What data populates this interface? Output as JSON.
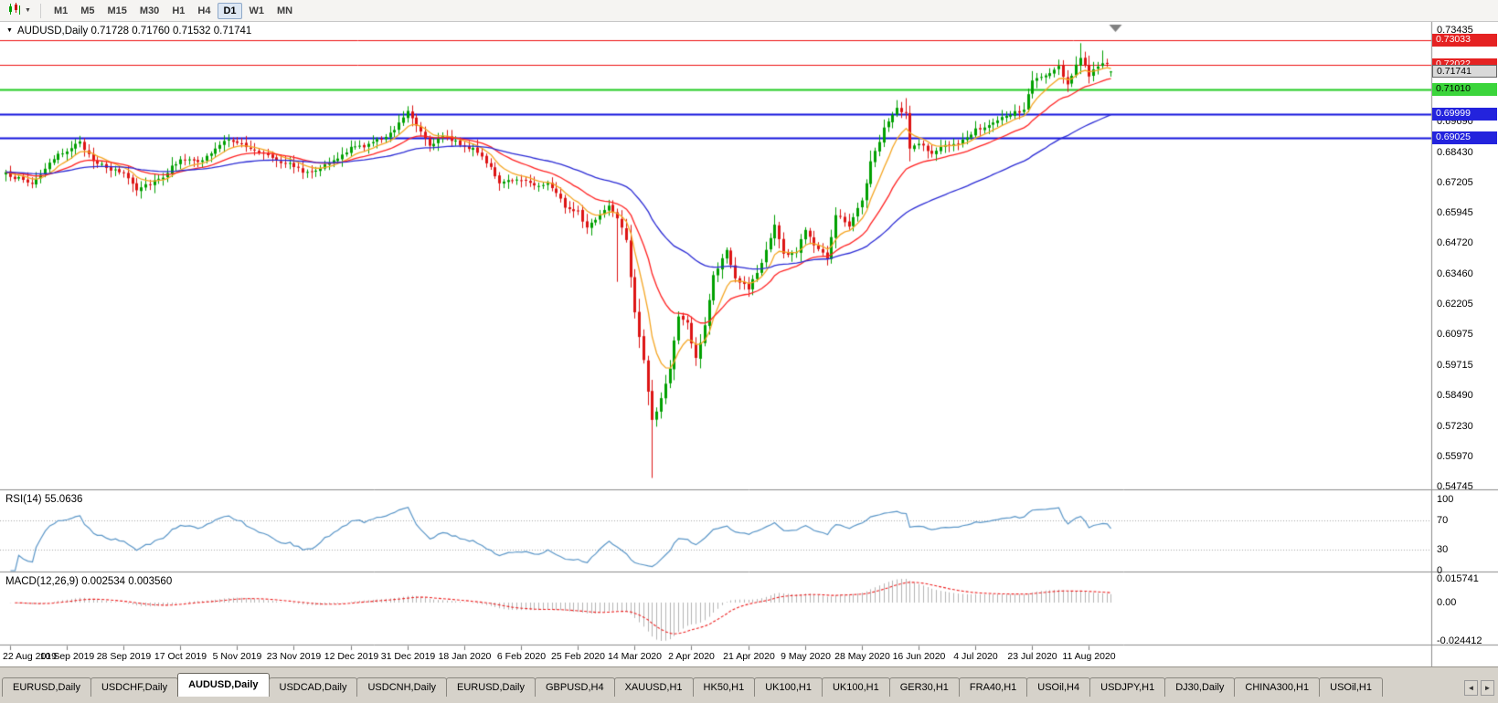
{
  "icons": {
    "collapse_triangle": "▼",
    "dropdown_caret": "▼",
    "tab_scroll_left": "◄",
    "tab_scroll_right": "►"
  },
  "colors": {
    "up": "#00a000",
    "down": "#dd1414",
    "ma_fast": "#f5a623",
    "ma_mid": "#ff2222",
    "ma_slow": "#2b2bd5",
    "hline_red": "#ee1111",
    "hline_green": "#1ecb1e",
    "hline_blue": "#1414dd",
    "rsi_line": "#5a96c8",
    "macd_hist": "#b4b4b4",
    "macd_signal": "#ee2222"
  },
  "toolbar": {
    "timeframes": [
      "M1",
      "M5",
      "M15",
      "M30",
      "H1",
      "H4",
      "D1",
      "W1",
      "MN"
    ],
    "active": "D1"
  },
  "price_pane": {
    "header_text": "AUDUSD,Daily 0.71728 0.71760 0.71532 0.71741",
    "axis_plain_labels": [
      0.73435,
      0.6969,
      0.6843,
      0.67205,
      0.65945,
      0.6472,
      0.6346,
      0.62205,
      0.60975,
      0.59715,
      0.5849,
      0.5723,
      0.5597,
      0.54745
    ],
    "axis_tags": [
      {
        "value": 0.73033,
        "style": "red"
      },
      {
        "value": 0.72022,
        "style": "red"
      },
      {
        "value": 0.71741,
        "style": "current"
      },
      {
        "value": 0.7101,
        "style": "green"
      },
      {
        "value": 0.69999,
        "style": "blue"
      },
      {
        "value": 0.69025,
        "style": "blue"
      }
    ]
  },
  "rsi_pane": {
    "label_text": "RSI(14) 55.0636",
    "axis_labels": [
      100,
      70,
      30,
      0
    ],
    "dotted_levels": [
      70,
      30
    ]
  },
  "macd_pane": {
    "label_text": "MACD(12,26,9) 0.002534 0.003560",
    "axis_labels": [
      "0.015741",
      "0.00",
      "-0.024412"
    ]
  },
  "tabs": {
    "items": [
      "EURUSD,Daily",
      "USDCHF,Daily",
      "AUDUSD,Daily",
      "USDCAD,Daily",
      "USDCNH,Daily",
      "EURUSD,Daily",
      "GBPUSD,H4",
      "XAUUSD,H1",
      "HK50,H1",
      "UK100,H1",
      "UK100,H1",
      "GER30,H1",
      "FRA40,H1",
      "USOil,H4",
      "USDJPY,H1",
      "DJ30,Daily",
      "CHINA300,H1",
      "USOil,H1"
    ],
    "active_index": 2
  },
  "chart_data": {
    "type": "candlestick",
    "symbol": "AUDUSD",
    "timeframe": "Daily",
    "ohlc_current": {
      "open": 0.71728,
      "high": 0.7176,
      "low": 0.71532,
      "close": 0.71741
    },
    "ylim": [
      0.54745,
      0.73435
    ],
    "bar_count": 254,
    "label_first_bar": 1,
    "label_bar_step": 13,
    "x_labels": [
      "22 Aug 2019",
      "10 Sep 2019",
      "28 Sep 2019",
      "17 Oct 2019",
      "5 Nov 2019",
      "23 Nov 2019",
      "12 Dec 2019",
      "31 Dec 2019",
      "18 Jan 2020",
      "6 Feb 2020",
      "25 Feb 2020",
      "14 Mar 2020",
      "2 Apr 2020",
      "21 Apr 2020",
      "9 May 2020",
      "28 May 2020",
      "16 Jun 2020",
      "4 Jul 2020",
      "23 Jul 2020",
      "11 Aug 2020"
    ],
    "close_anchors": [
      [
        0,
        0.6755
      ],
      [
        3,
        0.6735
      ],
      [
        6,
        0.6715
      ],
      [
        9,
        0.6775
      ],
      [
        12,
        0.683
      ],
      [
        15,
        0.6865
      ],
      [
        17,
        0.688
      ],
      [
        20,
        0.6815
      ],
      [
        23,
        0.6775
      ],
      [
        27,
        0.676
      ],
      [
        30,
        0.6695
      ],
      [
        33,
        0.672
      ],
      [
        36,
        0.6745
      ],
      [
        40,
        0.682
      ],
      [
        44,
        0.68
      ],
      [
        47,
        0.684
      ],
      [
        51,
        0.69
      ],
      [
        53,
        0.6885
      ],
      [
        56,
        0.6855
      ],
      [
        60,
        0.6835
      ],
      [
        63,
        0.6805
      ],
      [
        66,
        0.679
      ],
      [
        68,
        0.676
      ],
      [
        71,
        0.6775
      ],
      [
        75,
        0.6805
      ],
      [
        79,
        0.686
      ],
      [
        83,
        0.6875
      ],
      [
        86,
        0.69
      ],
      [
        89,
        0.694
      ],
      [
        92,
        0.7015
      ],
      [
        94,
        0.696
      ],
      [
        97,
        0.6875
      ],
      [
        100,
        0.6905
      ],
      [
        103,
        0.689
      ],
      [
        105,
        0.687
      ],
      [
        108,
        0.6845
      ],
      [
        111,
        0.6785
      ],
      [
        113,
        0.6715
      ],
      [
        116,
        0.6725
      ],
      [
        118,
        0.6735
      ],
      [
        121,
        0.671
      ],
      [
        124,
        0.6715
      ],
      [
        126,
        0.668
      ],
      [
        128,
        0.662
      ],
      [
        131,
        0.6605
      ],
      [
        133,
        0.653
      ],
      [
        136,
        0.659
      ],
      [
        138,
        0.6625
      ],
      [
        140,
        0.658
      ],
      [
        142,
        0.649
      ],
      [
        144,
        0.619
      ],
      [
        146,
        0.5995
      ],
      [
        148,
        0.574
      ],
      [
        150,
        0.583
      ],
      [
        152,
        0.5965
      ],
      [
        154,
        0.617
      ],
      [
        156,
        0.614
      ],
      [
        158,
        0.5995
      ],
      [
        160,
        0.6135
      ],
      [
        162,
        0.634
      ],
      [
        165,
        0.644
      ],
      [
        167,
        0.6325
      ],
      [
        170,
        0.6285
      ],
      [
        173,
        0.639
      ],
      [
        176,
        0.655
      ],
      [
        178,
        0.6425
      ],
      [
        181,
        0.6435
      ],
      [
        183,
        0.653
      ],
      [
        185,
        0.647
      ],
      [
        188,
        0.6415
      ],
      [
        190,
        0.659
      ],
      [
        193,
        0.6545
      ],
      [
        196,
        0.6645
      ],
      [
        198,
        0.68
      ],
      [
        201,
        0.694
      ],
      [
        204,
        0.702
      ],
      [
        206,
        0.7
      ],
      [
        207,
        0.6855
      ],
      [
        209,
        0.6885
      ],
      [
        212,
        0.6835
      ],
      [
        215,
        0.6875
      ],
      [
        218,
        0.687
      ],
      [
        222,
        0.694
      ],
      [
        226,
        0.696
      ],
      [
        230,
        0.7
      ],
      [
        233,
        0.7015
      ],
      [
        235,
        0.714
      ],
      [
        238,
        0.7155
      ],
      [
        241,
        0.719
      ],
      [
        243,
        0.7125
      ],
      [
        246,
        0.7235
      ],
      [
        248,
        0.716
      ],
      [
        250,
        0.719
      ],
      [
        252,
        0.721
      ],
      [
        253,
        0.71741
      ]
    ],
    "special_wicks": [
      {
        "i": 30,
        "low": 0.667
      },
      {
        "i": 92,
        "high": 0.7032
      },
      {
        "i": 140,
        "low": 0.6313
      },
      {
        "i": 148,
        "low": 0.551
      },
      {
        "i": 206,
        "high": 0.7065
      },
      {
        "i": 246,
        "high": 0.729
      },
      {
        "i": 251,
        "high": 0.726
      }
    ],
    "horizontal_lines": [
      {
        "price": 0.73033,
        "color_key": "hline_red",
        "width": 1
      },
      {
        "price": 0.72022,
        "color_key": "hline_red",
        "width": 1
      },
      {
        "price": 0.7101,
        "color_key": "hline_green",
        "width": 2
      },
      {
        "price": 0.69999,
        "color_key": "hline_blue",
        "width": 2
      },
      {
        "price": 0.69025,
        "color_key": "hline_blue",
        "width": 2
      }
    ],
    "moving_averages": [
      {
        "type": "EMA",
        "period": 8,
        "color_key": "ma_fast"
      },
      {
        "type": "EMA",
        "period": 21,
        "color_key": "ma_mid"
      },
      {
        "type": "EMA",
        "period": 55,
        "color_key": "ma_slow"
      }
    ],
    "indicators": {
      "rsi": {
        "period": 14,
        "current": 55.0636,
        "scale": [
          0,
          100
        ],
        "levels": [
          70,
          30
        ]
      },
      "macd": {
        "fast": 12,
        "slow": 26,
        "signal": 9,
        "current_macd": 0.002534,
        "current_signal": 0.00356,
        "scale_labels": [
          0.015741,
          0.0,
          -0.024412
        ]
      }
    }
  }
}
